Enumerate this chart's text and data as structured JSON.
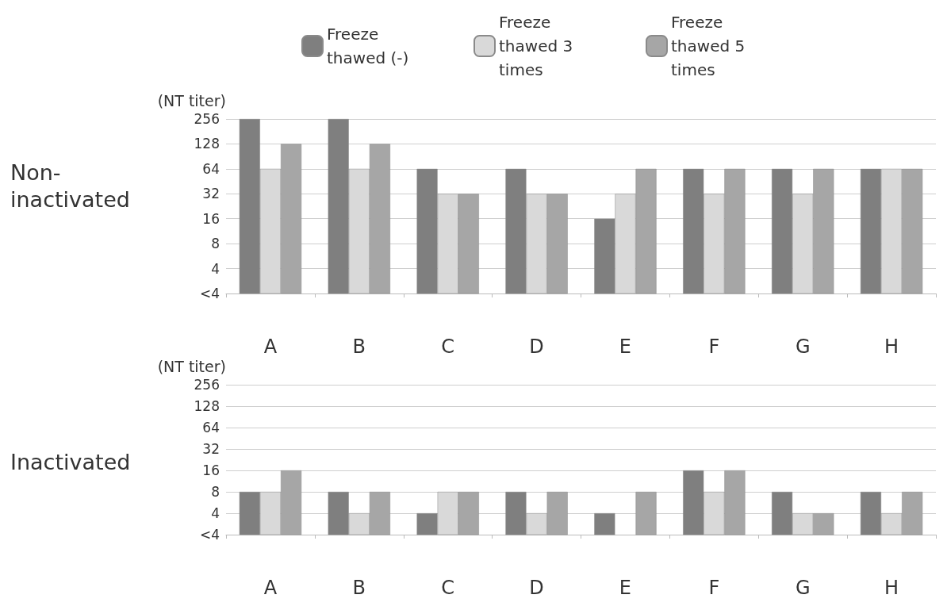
{
  "chart_data": [
    {
      "type": "bar",
      "title": "Non-inactivated",
      "ylabel": "(NT titer)",
      "categories": [
        "A",
        "B",
        "C",
        "D",
        "E",
        "F",
        "G",
        "H"
      ],
      "series": [
        {
          "name": "Freeze thawed (-)",
          "color": "#7f7f7f",
          "values": [
            256,
            256,
            64,
            64,
            16,
            64,
            64,
            64
          ]
        },
        {
          "name": "Freeze thawed 3 times",
          "color": "#d9d9d9",
          "values": [
            64,
            64,
            32,
            32,
            32,
            32,
            32,
            64
          ]
        },
        {
          "name": "Freeze thawed 5 times",
          "color": "#a6a6a6",
          "values": [
            128,
            128,
            32,
            32,
            64,
            64,
            64,
            64
          ]
        }
      ],
      "log": true,
      "ylim": [
        2,
        256
      ],
      "yticks": [
        {
          "value": 2,
          "label": "<4"
        },
        4,
        8,
        16,
        32,
        64,
        128,
        256
      ],
      "grid": "y",
      "legend": "top"
    },
    {
      "type": "bar",
      "title": "Inactivated",
      "ylabel": "(NT titer)",
      "categories": [
        "A",
        "B",
        "C",
        "D",
        "E",
        "F",
        "G",
        "H"
      ],
      "series": [
        {
          "color": "#7f7f7f",
          "values": [
            8,
            8,
            4,
            8,
            4,
            16,
            8,
            8
          ]
        },
        {
          "color": "#d9d9d9",
          "values": [
            8,
            4,
            8,
            4,
            2,
            8,
            4,
            4
          ]
        },
        {
          "color": "#a6a6a6",
          "values": [
            16,
            8,
            8,
            8,
            8,
            16,
            4,
            8
          ]
        }
      ],
      "log": true,
      "ylim": [
        2,
        256
      ],
      "yticks": [
        {
          "value": 2,
          "label": "<4"
        },
        4,
        8,
        16,
        32,
        64,
        128,
        256
      ],
      "grid": "y"
    }
  ]
}
